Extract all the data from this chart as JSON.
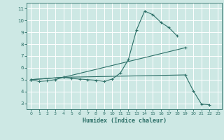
{
  "xlabel": "Humidex (Indice chaleur)",
  "bg_color": "#cde8e4",
  "grid_color": "#ffffff",
  "line_color": "#2d7068",
  "line1_x": [
    0,
    1,
    2,
    3,
    4,
    5,
    6,
    7,
    8,
    9,
    10,
    11,
    12,
    13,
    14,
    15,
    16,
    17,
    18
  ],
  "line1_y": [
    5.0,
    4.85,
    4.9,
    5.0,
    5.2,
    5.1,
    5.05,
    5.0,
    4.95,
    4.85,
    5.05,
    5.55,
    6.7,
    9.2,
    10.8,
    10.5,
    9.85,
    9.4,
    8.7
  ],
  "line2_x": [
    0,
    4,
    19
  ],
  "line2_y": [
    5.0,
    5.2,
    7.7
  ],
  "line3_x": [
    0,
    4,
    19,
    20,
    21,
    22
  ],
  "line3_y": [
    5.0,
    5.2,
    5.4,
    4.05,
    2.93,
    2.88
  ],
  "xlim": [
    -0.5,
    23.5
  ],
  "ylim": [
    2.5,
    11.5
  ],
  "yticks": [
    3,
    4,
    5,
    6,
    7,
    8,
    9,
    10,
    11
  ],
  "xticks": [
    0,
    1,
    2,
    3,
    4,
    5,
    6,
    7,
    8,
    9,
    10,
    11,
    12,
    13,
    14,
    15,
    16,
    17,
    18,
    19,
    20,
    21,
    22,
    23
  ]
}
